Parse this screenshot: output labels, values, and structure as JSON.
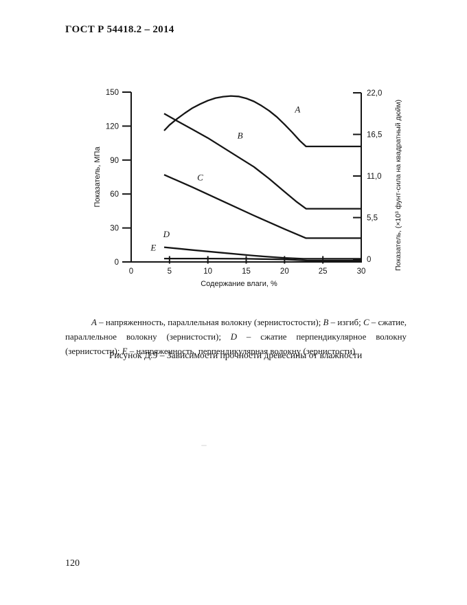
{
  "page": {
    "header_title": "ГОСТ Р 54418.2 – 2014",
    "page_number": "120"
  },
  "figure": {
    "legend_segments": [
      {
        "text": "A",
        "italic": true
      },
      {
        "text": " – напряженность, параллельная волокну (зернистостости); ",
        "italic": false
      },
      {
        "text": "B",
        "italic": true
      },
      {
        "text": " – изгиб; ",
        "italic": false
      },
      {
        "text": "C",
        "italic": true
      },
      {
        "text": " – сжатие, параллельное волокну (зернистости); ",
        "italic": false
      },
      {
        "text": "D",
        "italic": true
      },
      {
        "text": " – сжатие перпендикулярное волокну (зернистости); ",
        "italic": false
      },
      {
        "text": "E",
        "italic": true
      },
      {
        "text": " – напряженность, перпендикулярная волокну (зернистости)",
        "italic": false
      }
    ],
    "caption": "Рисунок Д.9 – Зависимости прочности древесины от влажности"
  },
  "chart_data": {
    "type": "line",
    "title": "",
    "xlabel": "Содержание влаги, %",
    "ylabel_left": "Показатель, МПа",
    "ylabel_right": "Показатель, (×10³ фунт-сила на квадратный дюйм)",
    "xlim": [
      0,
      30
    ],
    "ylim_left": [
      0,
      150
    ],
    "ylim_right": [
      0,
      22
    ],
    "grid": false,
    "legend_position": "inline-labels",
    "line_color": "#151515",
    "x_tick_labels": [
      "0",
      "5",
      "10",
      "15",
      "20",
      "25",
      "30"
    ],
    "x_tick_values": [
      0,
      5,
      10,
      15,
      20,
      25,
      30
    ],
    "x_tick_marks": [
      5,
      10,
      15,
      20,
      25
    ],
    "y_ticks_left": [
      {
        "label": "150",
        "value": 150
      },
      {
        "label": "120",
        "value": 120
      },
      {
        "label": "90",
        "value": 90
      },
      {
        "label": "60",
        "value": 60
      },
      {
        "label": "30",
        "value": 30
      },
      {
        "label": "0",
        "value": 0
      }
    ],
    "y_ticks_right": [
      {
        "label": "22,0",
        "value": 22
      },
      {
        "label": "16,5",
        "value": 16.5
      },
      {
        "label": "11,0",
        "value": 11
      },
      {
        "label": "5,5",
        "value": 5.5
      },
      {
        "label": "0",
        "value": 0
      }
    ],
    "series": [
      {
        "name": "A",
        "label": "A",
        "label_at": [
          21.7,
          132
        ],
        "points": [
          [
            4.3,
            116
          ],
          [
            5,
            121
          ],
          [
            6,
            126.5
          ],
          [
            7,
            131.5
          ],
          [
            8,
            136
          ],
          [
            9,
            139.5
          ],
          [
            10,
            142.5
          ],
          [
            11,
            144.8
          ],
          [
            12,
            146
          ],
          [
            13,
            146.6
          ],
          [
            14,
            146.2
          ],
          [
            15,
            144.5
          ],
          [
            16,
            141.8
          ],
          [
            17,
            138
          ],
          [
            18,
            133.5
          ],
          [
            19,
            128
          ],
          [
            20,
            121.5
          ],
          [
            21,
            114.5
          ],
          [
            22,
            107
          ],
          [
            22.8,
            102
          ],
          [
            30,
            102
          ]
        ]
      },
      {
        "name": "B",
        "label": "B",
        "label_at": [
          14.2,
          109
        ],
        "points": [
          [
            4.3,
            131
          ],
          [
            6,
            124.5
          ],
          [
            8,
            117
          ],
          [
            10,
            109.5
          ],
          [
            12,
            101
          ],
          [
            14,
            92.5
          ],
          [
            16,
            84
          ],
          [
            18,
            73.5
          ],
          [
            20,
            62
          ],
          [
            21.5,
            53.5
          ],
          [
            22.8,
            47
          ],
          [
            30,
            47
          ]
        ]
      },
      {
        "name": "C",
        "label": "C",
        "label_at": [
          9.0,
          72
        ],
        "points": [
          [
            4.3,
            77
          ],
          [
            8,
            66
          ],
          [
            12,
            53.5
          ],
          [
            16,
            41
          ],
          [
            20,
            29
          ],
          [
            22.8,
            21
          ],
          [
            30,
            21
          ]
        ]
      },
      {
        "name": "D",
        "label": "D",
        "label_at": [
          4.6,
          22
        ],
        "points": [
          [
            4.3,
            13
          ],
          [
            8,
            10.5
          ],
          [
            12,
            8
          ],
          [
            16,
            5.5
          ],
          [
            20,
            3.5
          ],
          [
            22.5,
            2.8
          ],
          [
            30,
            2.8
          ]
        ]
      },
      {
        "name": "E",
        "label": "E",
        "label_at": [
          2.9,
          10
        ],
        "points": [
          [
            4.3,
            3
          ],
          [
            10,
            3
          ],
          [
            15,
            2.8
          ],
          [
            20,
            2.2
          ],
          [
            23,
            1.2
          ],
          [
            30,
            1.2
          ]
        ]
      }
    ]
  }
}
